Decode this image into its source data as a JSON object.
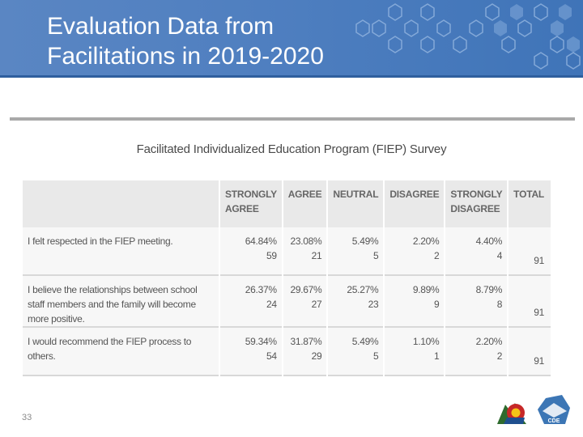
{
  "slide": {
    "title": "Evaluation Data from Facilitations in 2019-2020",
    "number": "33"
  },
  "survey": {
    "title": "Facilitated Individualized Education Program (FIEP) Survey",
    "columns": [
      "",
      "STRONGLY AGREE",
      "AGREE",
      "NEUTRAL",
      "DISAGREE",
      "STRONGLY DISAGREE",
      "TOTAL"
    ],
    "rows": [
      {
        "question": "I felt respected in the FIEP meeting.",
        "cells": [
          {
            "pct": "64.84%",
            "count": "59"
          },
          {
            "pct": "23.08%",
            "count": "21"
          },
          {
            "pct": "5.49%",
            "count": "5"
          },
          {
            "pct": "2.20%",
            "count": "2"
          },
          {
            "pct": "4.40%",
            "count": "4"
          }
        ],
        "total": "91"
      },
      {
        "question": "I believe the relationships between school staff members and the family will become more positive.",
        "cells": [
          {
            "pct": "26.37%",
            "count": "24"
          },
          {
            "pct": "29.67%",
            "count": "27"
          },
          {
            "pct": "25.27%",
            "count": "23"
          },
          {
            "pct": "9.89%",
            "count": "9"
          },
          {
            "pct": "8.79%",
            "count": "8"
          }
        ],
        "total": "91"
      },
      {
        "question": "I would recommend the FIEP process to others.",
        "cells": [
          {
            "pct": "59.34%",
            "count": "54"
          },
          {
            "pct": "31.87%",
            "count": "29"
          },
          {
            "pct": "5.49%",
            "count": "5"
          },
          {
            "pct": "1.10%",
            "count": "1"
          },
          {
            "pct": "2.20%",
            "count": "2"
          }
        ],
        "total": "91"
      }
    ]
  },
  "logos": {
    "colorado_mark": "colorado-logo-icon",
    "cde_mark": "CDE"
  },
  "colors": {
    "header": "#4f7fc0",
    "table_header": "#e9e9e9",
    "table_cell": "#f7f7f7"
  }
}
